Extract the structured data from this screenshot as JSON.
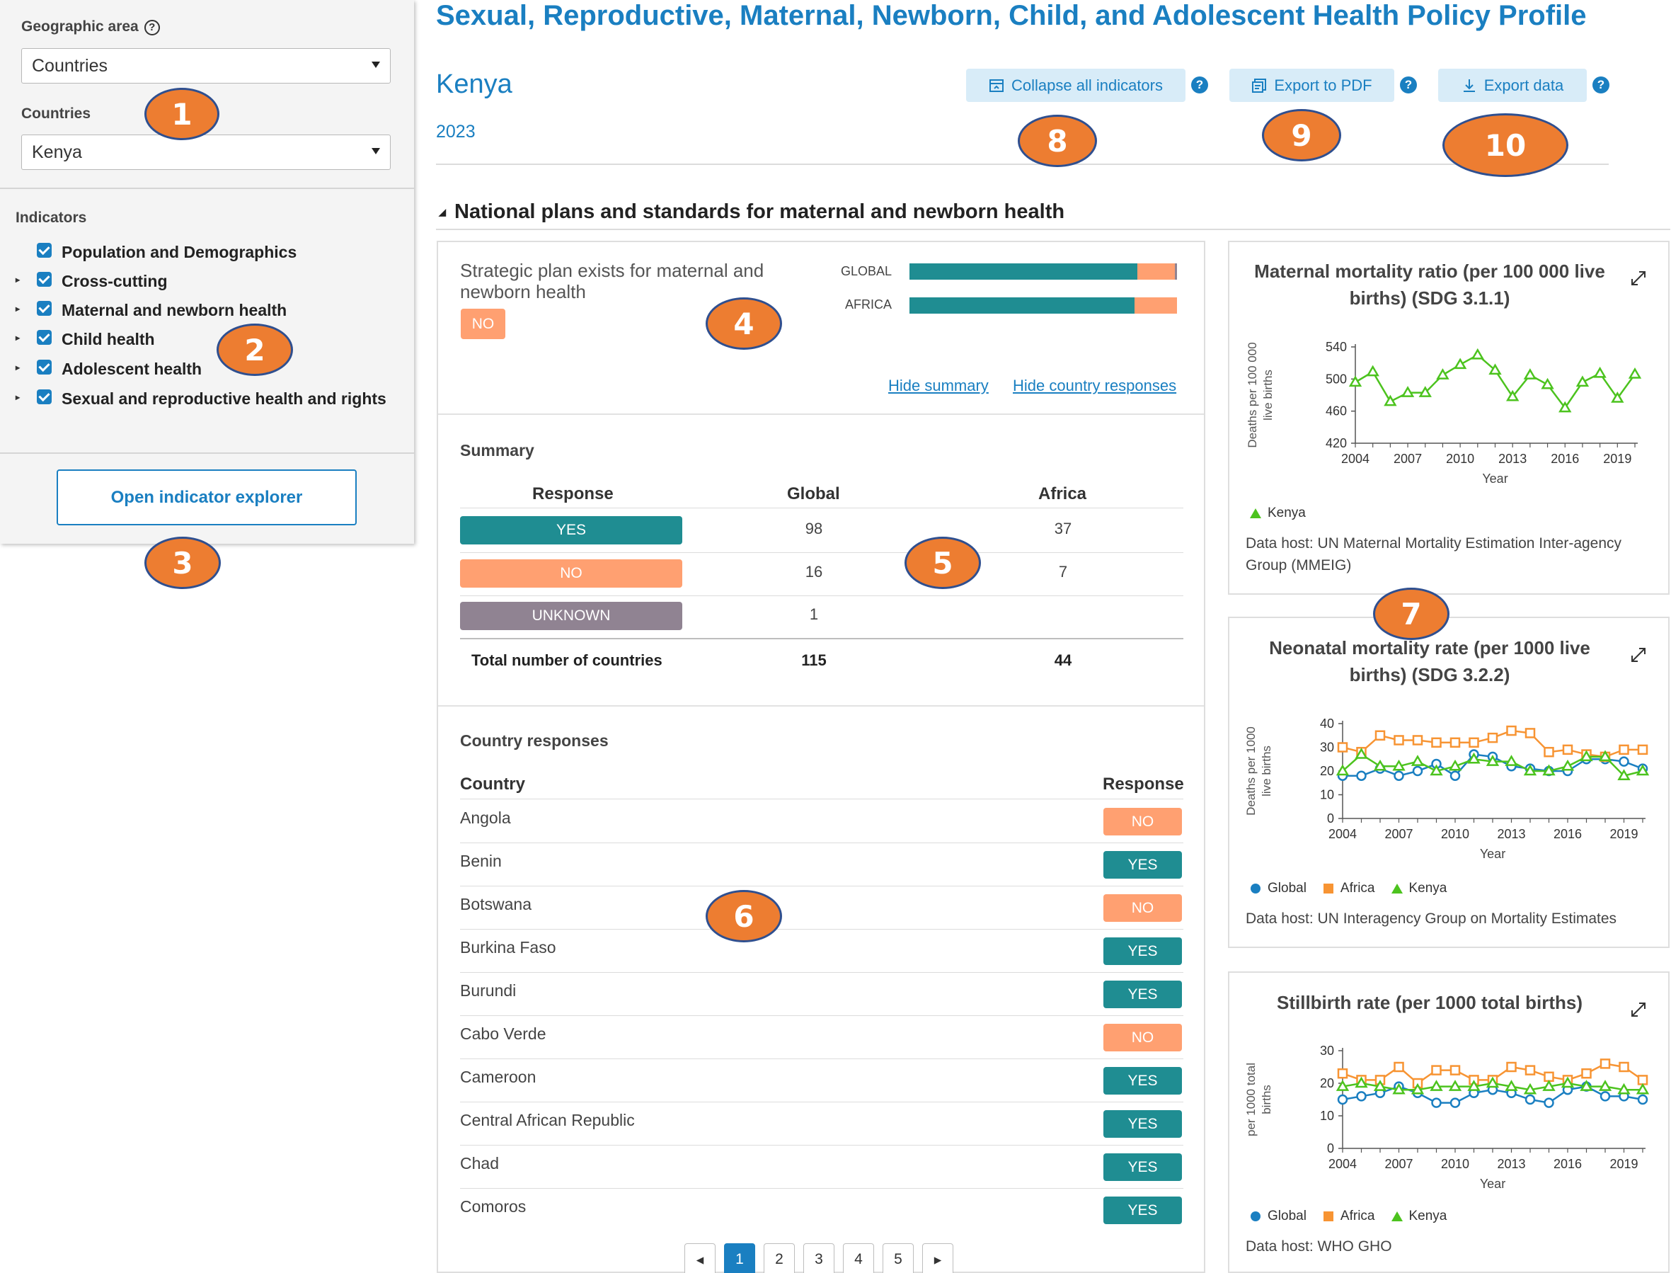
{
  "sidebar": {
    "geo_label": "Geographic area",
    "geo_help": "?",
    "geo_value": "Countries",
    "countries_label": "Countries",
    "country_value": "Kenya",
    "indicators_label": "Indicators",
    "indicators": [
      {
        "label": "Population and Demographics",
        "expandable": false
      },
      {
        "label": "Cross-cutting",
        "expandable": true
      },
      {
        "label": "Maternal and newborn health",
        "expandable": true
      },
      {
        "label": "Child health",
        "expandable": true
      },
      {
        "label": "Adolescent health",
        "expandable": true
      },
      {
        "label": "Sexual and reproductive health and rights",
        "expandable": true
      }
    ],
    "explorer_button": "Open indicator explorer"
  },
  "header": {
    "title": "Sexual, Reproductive, Maternal, Newborn, Child, and Adolescent Health Policy Profile",
    "country": "Kenya",
    "year": "2023",
    "collapse_label": "Collapse all indicators",
    "pdf_label": "Export to PDF",
    "export_label": "Export data",
    "help": "?"
  },
  "section": {
    "title": "National plans and standards for maternal and newborn health"
  },
  "indicator": {
    "title": "Strategic plan exists for maternal and newborn health",
    "response": "NO",
    "bars": [
      {
        "label": "GLOBAL",
        "yes": 98,
        "no": 16,
        "unknown": 1
      },
      {
        "label": "AFRICA",
        "yes": 37,
        "no": 7,
        "unknown": 0
      }
    ],
    "hide_summary": "Hide summary",
    "hide_responses": "Hide country responses"
  },
  "summary": {
    "heading": "Summary",
    "col_response": "Response",
    "col_global": "Global",
    "col_africa": "Africa",
    "rows": [
      {
        "response": "YES",
        "global": "98",
        "africa": "37"
      },
      {
        "response": "NO",
        "global": "16",
        "africa": "7"
      },
      {
        "response": "UNKNOWN",
        "global": "1",
        "africa": ""
      }
    ],
    "total_label": "Total number of countries",
    "total_global": "115",
    "total_africa": "44"
  },
  "responses": {
    "heading": "Country responses",
    "col_country": "Country",
    "col_response": "Response",
    "rows": [
      {
        "country": "Angola",
        "response": "NO"
      },
      {
        "country": "Benin",
        "response": "YES"
      },
      {
        "country": "Botswana",
        "response": "NO"
      },
      {
        "country": "Burkina Faso",
        "response": "YES"
      },
      {
        "country": "Burundi",
        "response": "YES"
      },
      {
        "country": "Cabo Verde",
        "response": "NO"
      },
      {
        "country": "Cameroon",
        "response": "YES"
      },
      {
        "country": "Central African Republic",
        "response": "YES"
      },
      {
        "country": "Chad",
        "response": "YES"
      },
      {
        "country": "Comoros",
        "response": "YES"
      }
    ],
    "pages": [
      "1",
      "2",
      "3",
      "4",
      "5"
    ],
    "prev": "◂",
    "next": "▸"
  },
  "colors": {
    "accent": "#1a7fc1",
    "yes": "#1f8d92",
    "no": "#ffa071",
    "unknown": "#908392",
    "global": "#1a7fc1",
    "africa": "#f79433",
    "kenya": "#4cc31e"
  },
  "markers": [
    "1",
    "2",
    "3",
    "4",
    "5",
    "6",
    "7",
    "8",
    "9",
    "10"
  ],
  "charts": [
    {
      "title": "Maternal mortality ratio (per 100 000 live births) (SDG 3.1.1)",
      "ylabel": "Deaths per 100 000 live births",
      "xlabel": "Year",
      "host": "Data host: UN Maternal Mortality Estimation Inter-agency Group (MMEIG)"
    },
    {
      "title": "Neonatal mortality rate (per 1000 live births) (SDG 3.2.2)",
      "ylabel": "Deaths per 1000 live births",
      "xlabel": "Year",
      "host": "Data host: UN Interagency Group on Mortality Estimates"
    },
    {
      "title": "Stillbirth rate (per 1000 total births)",
      "ylabel": "per 1000 total births",
      "xlabel": "Year",
      "host": "Data host: WHO GHO"
    }
  ],
  "chart_data": [
    {
      "type": "line",
      "title": "Maternal mortality ratio (per 100 000 live births) (SDG 3.1.1)",
      "xlabel": "Year",
      "ylabel": "Deaths per 100 000 live births",
      "ylim": [
        420,
        540
      ],
      "yticks": [
        420,
        460,
        500,
        540
      ],
      "x": [
        2004,
        2005,
        2006,
        2007,
        2008,
        2009,
        2010,
        2011,
        2012,
        2013,
        2014,
        2015,
        2016,
        2017,
        2018,
        2019,
        2020
      ],
      "xticks": [
        2004,
        2007,
        2010,
        2013,
        2016,
        2019
      ],
      "series": [
        {
          "name": "Kenya",
          "values": [
            496,
            509,
            472,
            483,
            483,
            505,
            518,
            530,
            511,
            478,
            505,
            493,
            464,
            496,
            507,
            476,
            506
          ]
        }
      ]
    },
    {
      "type": "line",
      "title": "Neonatal mortality rate (per 1000 live births) (SDG 3.2.2)",
      "xlabel": "Year",
      "ylabel": "Deaths per 1000 live births",
      "ylim": [
        0,
        40
      ],
      "yticks": [
        0,
        10,
        20,
        30,
        40
      ],
      "x": [
        2004,
        2005,
        2006,
        2007,
        2008,
        2009,
        2010,
        2011,
        2012,
        2013,
        2014,
        2015,
        2016,
        2017,
        2018,
        2019,
        2020
      ],
      "xticks": [
        2004,
        2007,
        2010,
        2013,
        2016,
        2019
      ],
      "series": [
        {
          "name": "Global",
          "values": [
            18,
            18,
            21,
            18,
            20,
            23,
            18,
            27,
            26,
            22,
            21,
            20,
            20,
            25,
            25,
            24,
            21
          ]
        },
        {
          "name": "Africa",
          "values": [
            30,
            28,
            35,
            33,
            33,
            32,
            32,
            32,
            34,
            37,
            36,
            28,
            29,
            27,
            26,
            29,
            29
          ]
        },
        {
          "name": "Kenya",
          "values": [
            20,
            27,
            22,
            22,
            24,
            20,
            22,
            25,
            24,
            24,
            20,
            20,
            22,
            26,
            26,
            18,
            20
          ]
        }
      ]
    },
    {
      "type": "line",
      "title": "Stillbirth rate (per 1000 total births)",
      "xlabel": "Year",
      "ylabel": "per 1000 total births",
      "ylim": [
        0,
        30
      ],
      "yticks": [
        0,
        10,
        20,
        30
      ],
      "x": [
        2004,
        2005,
        2006,
        2007,
        2008,
        2009,
        2010,
        2011,
        2012,
        2013,
        2014,
        2015,
        2016,
        2017,
        2018,
        2019,
        2020
      ],
      "xticks": [
        2004,
        2007,
        2010,
        2013,
        2016,
        2019
      ],
      "series": [
        {
          "name": "Global",
          "values": [
            15,
            16,
            17,
            19,
            17,
            14,
            14,
            17,
            18,
            17,
            15,
            14,
            18,
            19,
            16,
            16,
            15
          ]
        },
        {
          "name": "Africa",
          "values": [
            23,
            21,
            21,
            25,
            20,
            24,
            24,
            21,
            21,
            25,
            24,
            22,
            21,
            23,
            26,
            25,
            21
          ]
        },
        {
          "name": "Kenya",
          "values": [
            19,
            20,
            19,
            18,
            18,
            19,
            19,
            19,
            20,
            19,
            18,
            19,
            20,
            19,
            19,
            18,
            18
          ]
        }
      ]
    }
  ]
}
